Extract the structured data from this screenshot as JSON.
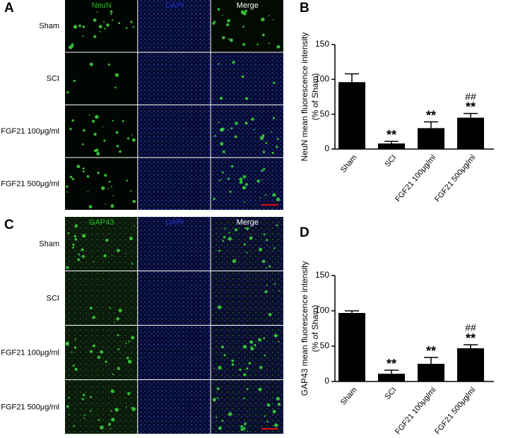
{
  "panel_a": {
    "label": "A",
    "columns": [
      "NeuN",
      "DAPI",
      "Merge"
    ],
    "rows": [
      "Sham",
      "SCI",
      "FGF21 100μg/ml",
      "FGF21 500μg/ml"
    ]
  },
  "panel_c": {
    "label": "C",
    "columns": [
      "GAP43",
      "DAPI",
      "Merge"
    ],
    "rows": [
      "Sham",
      "SCI",
      "FGF21 100μg/ml",
      "FGF21 500μg/ml"
    ]
  },
  "chart_data": [
    {
      "type": "bar",
      "panel_label": "B",
      "ylabel": [
        "NeuN mean fluorescence intensity",
        "(% of Sham)"
      ],
      "categories": [
        "Sham",
        "SCI",
        "FGF21 100μg/ml",
        "FGF21 500μg/ml"
      ],
      "values": [
        96,
        8,
        30,
        45
      ],
      "errors": [
        12,
        3,
        9,
        6
      ],
      "color": "#000000",
      "stars": [
        null,
        "**",
        "**",
        "**"
      ],
      "hashes": [
        null,
        null,
        null,
        "##"
      ],
      "ylim": [
        0,
        150
      ],
      "yticks": [
        0,
        50,
        100,
        150
      ]
    },
    {
      "type": "bar",
      "panel_label": "D",
      "ylabel": [
        "GAP43 mean fluorescence intensity",
        "(% of Sham)"
      ],
      "categories": [
        "Sham",
        "SCI",
        "FGF21 100μg/ml",
        "FGF21 500μg/ml"
      ],
      "values": [
        97,
        11,
        25,
        47
      ],
      "errors": [
        3,
        5,
        9,
        5
      ],
      "color": "#000000",
      "stars": [
        null,
        "**",
        "**",
        "**"
      ],
      "hashes": [
        null,
        null,
        null,
        "##"
      ],
      "ylim": [
        0,
        150
      ],
      "yticks": [
        0,
        50,
        100,
        150
      ]
    }
  ]
}
